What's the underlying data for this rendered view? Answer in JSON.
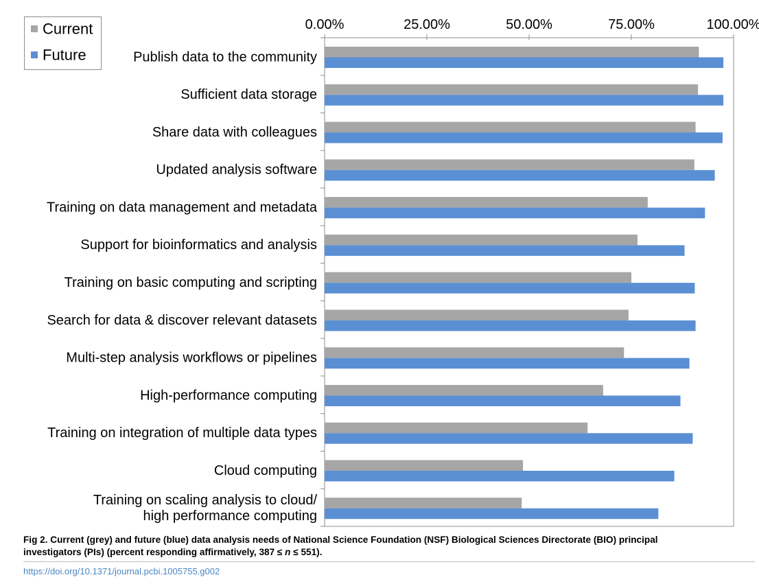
{
  "chart_data": {
    "type": "bar",
    "orientation": "horizontal",
    "categories": [
      [
        "Publish data to the community"
      ],
      [
        "Sufficient data storage"
      ],
      [
        "Share data with colleagues"
      ],
      [
        "Updated analysis software"
      ],
      [
        "Training on data management and metadata"
      ],
      [
        "Support for bioinformatics and analysis"
      ],
      [
        "Training on basic computing and scripting"
      ],
      [
        "Search for data & discover relevant datasets"
      ],
      [
        "Multi-step analysis workflows or pipelines"
      ],
      [
        "High-performance computing"
      ],
      [
        "Training on integration of multiple data types"
      ],
      [
        "Cloud computing"
      ],
      [
        "Training on scaling analysis to cloud/",
        "high performance computing"
      ]
    ],
    "series": [
      {
        "name": "Current",
        "color": "#a6a6a6",
        "values": [
          91.5,
          91.3,
          90.7,
          90.4,
          79.0,
          76.5,
          75.0,
          74.3,
          73.2,
          68.1,
          64.3,
          48.5,
          48.2
        ]
      },
      {
        "name": "Future",
        "color": "#5b8fd4",
        "values": [
          97.5,
          97.5,
          97.3,
          95.4,
          93.0,
          88.0,
          90.5,
          90.7,
          89.2,
          87.0,
          90.0,
          85.5,
          81.6
        ]
      }
    ],
    "x_ticks": [
      "0.00%",
      "25.00%",
      "50.00%",
      "75.00%",
      "100.00%"
    ],
    "xlim": [
      0,
      100
    ],
    "grid": false,
    "legend_position": "top-left",
    "title": "",
    "xlabel": "",
    "ylabel": ""
  },
  "caption": {
    "line1": "Fig 2. Current (grey) and future (blue) data analysis needs of National Science Foundation (NSF) Biological Sciences Directorate (BIO) principal",
    "line2_pre": "investigators (PIs) (percent responding affirmatively, 387 ≤ ",
    "line2_n": "n",
    "line2_post": " ≤ 551)."
  },
  "doi": "https://doi.org/10.1371/journal.pcbi.1005755.g002"
}
